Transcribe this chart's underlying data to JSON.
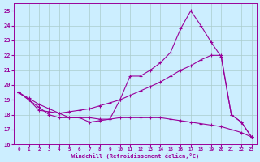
{
  "background_color": "#cceeff",
  "grid_color": "#aacccc",
  "line_color": "#990099",
  "xlim": [
    -0.5,
    23.5
  ],
  "ylim": [
    16,
    25.5
  ],
  "yticks": [
    16,
    17,
    18,
    19,
    20,
    21,
    22,
    23,
    24,
    25
  ],
  "xticks": [
    0,
    1,
    2,
    3,
    4,
    5,
    6,
    7,
    8,
    9,
    10,
    11,
    12,
    13,
    14,
    15,
    16,
    17,
    18,
    19,
    20,
    21,
    22,
    23
  ],
  "xlabel": "Windchill (Refroidissement éolien,°C)",
  "series1_x": [
    0,
    1,
    2,
    3,
    4,
    5,
    6,
    7,
    8,
    9,
    10,
    11,
    12,
    13,
    14,
    15,
    16,
    17,
    18,
    19,
    20,
    21,
    22,
    23
  ],
  "series1_y": [
    19.5,
    19.0,
    18.3,
    18.2,
    18.1,
    17.8,
    17.8,
    17.8,
    17.7,
    17.7,
    19.0,
    20.6,
    20.6,
    21.0,
    21.5,
    22.2,
    23.8,
    25.0,
    24.0,
    22.9,
    21.9,
    18.0,
    17.5,
    16.5
  ],
  "series2_x": [
    0,
    1,
    2,
    3,
    4,
    5,
    6,
    7,
    8,
    9,
    10,
    11,
    12,
    13,
    14,
    15,
    16,
    17,
    18,
    19,
    20,
    21,
    22,
    23
  ],
  "series2_y": [
    19.5,
    19.1,
    18.7,
    18.4,
    18.1,
    18.2,
    18.3,
    18.4,
    18.6,
    18.8,
    19.0,
    19.3,
    19.6,
    19.9,
    20.2,
    20.6,
    21.0,
    21.3,
    21.7,
    22.0,
    22.0,
    18.0,
    17.5,
    16.5
  ],
  "series3_x": [
    0,
    1,
    2,
    3,
    4,
    5,
    6,
    7,
    8,
    9,
    10,
    11,
    12,
    13,
    14,
    15,
    16,
    17,
    18,
    19,
    20,
    21,
    22,
    23
  ],
  "series3_y": [
    19.5,
    19.0,
    18.5,
    18.0,
    17.8,
    17.8,
    17.8,
    17.5,
    17.6,
    17.7,
    17.8,
    17.8,
    17.8,
    17.8,
    17.8,
    17.7,
    17.6,
    17.5,
    17.4,
    17.3,
    17.2,
    17.0,
    16.8,
    16.5
  ]
}
